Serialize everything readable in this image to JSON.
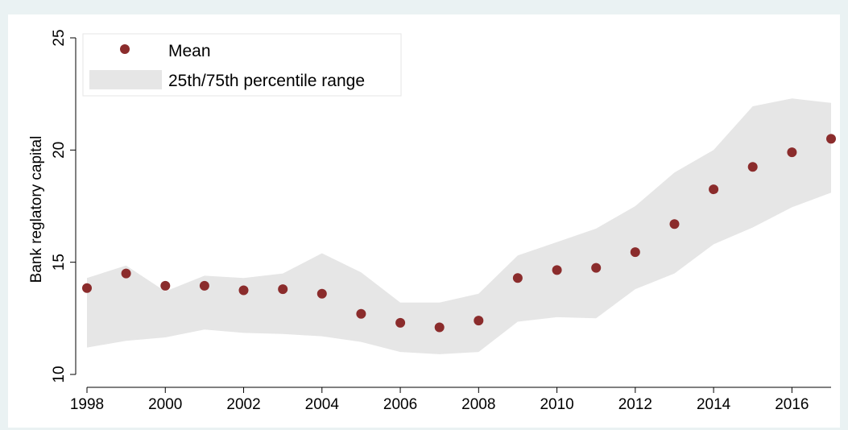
{
  "chart_data": {
    "type": "scatter",
    "title": "",
    "xlabel": "",
    "ylabel": "Bank reglatory capital",
    "xlim": [
      1998,
      2017
    ],
    "ylim": [
      10,
      25
    ],
    "x_ticks": [
      "1998",
      "2000",
      "2002",
      "2004",
      "2006",
      "2008",
      "2010",
      "2012",
      "2014",
      "2016"
    ],
    "y_ticks": [
      "10",
      "15",
      "20",
      "25"
    ],
    "grid": false,
    "legend_position": "top-left",
    "x": [
      1998,
      1999,
      2000,
      2001,
      2002,
      2003,
      2004,
      2005,
      2006,
      2007,
      2008,
      2009,
      2010,
      2011,
      2012,
      2013,
      2014,
      2015,
      2016,
      2017
    ],
    "series": [
      {
        "name": "Mean",
        "kind": "markers",
        "color": "#8b2c2c",
        "values": [
          13.85,
          14.5,
          13.95,
          13.95,
          13.75,
          13.8,
          13.6,
          12.7,
          12.3,
          12.1,
          12.4,
          14.3,
          14.65,
          14.75,
          15.45,
          16.7,
          18.25,
          19.25,
          19.9,
          20.5
        ]
      },
      {
        "name": "25th/75th percentile range",
        "kind": "band",
        "color": "#e6e6e6",
        "lower": [
          11.2,
          11.5,
          11.65,
          12.0,
          11.85,
          11.8,
          11.7,
          11.45,
          11.0,
          10.9,
          11.0,
          12.35,
          12.55,
          12.5,
          13.8,
          14.5,
          15.8,
          16.55,
          17.45,
          18.1
        ],
        "upper": [
          14.3,
          14.85,
          13.7,
          14.4,
          14.3,
          14.5,
          15.4,
          14.55,
          13.2,
          13.2,
          13.6,
          15.3,
          15.9,
          16.5,
          17.5,
          19.0,
          20.0,
          21.95,
          22.3,
          22.1
        ]
      }
    ]
  }
}
